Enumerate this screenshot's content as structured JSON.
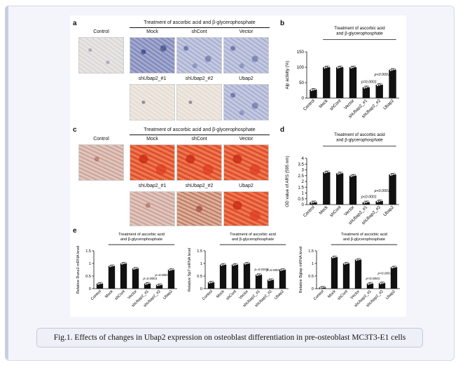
{
  "caption": "Fig.1. Effects of changes in Ubap2 expression on osteoblast differentiation in pre-osteoblast MC3T3-E1 cells",
  "panels": {
    "a": {
      "letter": "a",
      "header": "Treatment of ascorbic acid and β-glycerophosphate",
      "control_label": "Control",
      "labels": [
        "Mock",
        "shCont",
        "Vector",
        "shUbap2_#1",
        "shUbap2_#2",
        "Ubap2"
      ]
    },
    "b": {
      "letter": "b"
    },
    "c": {
      "letter": "c",
      "header": "Treatment of ascorbic acid and β-glycerophosphate",
      "control_label": "Control",
      "labels": [
        "Mock",
        "shCont",
        "Vector",
        "shUbap2_#1",
        "shUbap2_#2",
        "Ubap2"
      ]
    },
    "d": {
      "letter": "d"
    },
    "e": {
      "letter": "e"
    }
  },
  "chart_data": [
    {
      "id": "b",
      "type": "bar",
      "ylabel": "Alp activity (%)",
      "treatment": [
        "Treatment of ascorbic acid",
        "and β-glycerophosphate"
      ],
      "categories": [
        "Control",
        "Mock",
        "shCont",
        "Vector",
        "shUbap2_#1",
        "shUbap2_#2",
        "Ubap2"
      ],
      "values": [
        27,
        100,
        100,
        100,
        35,
        43,
        92
      ],
      "ylim": [
        0,
        150
      ],
      "yticks": [
        0,
        50,
        100,
        150
      ],
      "pvalues": [
        {
          "index": 4,
          "text": "p=0.0001"
        },
        {
          "index": 5,
          "text": "p<0.0001"
        }
      ]
    },
    {
      "id": "d",
      "type": "bar",
      "ylabel": "OD value of ARS (595 nm)",
      "treatment": [
        "Treatment of ascorbic acid",
        "and β-glycerophosphate"
      ],
      "categories": [
        "Control",
        "Mock",
        "shCont",
        "Vector",
        "shUbap2_#1",
        "shUbap2_#2",
        "Ubap2"
      ],
      "values": [
        0.2,
        2.8,
        2.7,
        2.5,
        0.2,
        0.3,
        2.6
      ],
      "ylim": [
        0,
        4
      ],
      "yticks": [
        0,
        0.5,
        1.0,
        1.5,
        2.0,
        2.5,
        3.0,
        3.5,
        4.0
      ],
      "pvalues": [
        {
          "index": 4,
          "text": "p<0.0001"
        },
        {
          "index": 5,
          "text": "p<0.0001"
        }
      ]
    },
    {
      "id": "e1",
      "type": "bar",
      "ylabel": "Relative Runx2 mRNA level",
      "treatment": [
        "Treatment of ascorbic acid",
        "and β-glycerophosphate"
      ],
      "categories": [
        "Control",
        "Mock",
        "shCont",
        "Vector",
        "shUbap2_#1",
        "shUbap2_#2",
        "Ubap2"
      ],
      "values": [
        0.2,
        0.9,
        1.0,
        0.8,
        0.2,
        0.15,
        0.75
      ],
      "ylim": [
        0,
        1.5
      ],
      "yticks": [
        0,
        0.5,
        1.0,
        1.5
      ],
      "pvalues": [
        {
          "index": 4,
          "text": "p=0.0001"
        },
        {
          "index": 5,
          "text": "p=0.0001"
        }
      ]
    },
    {
      "id": "e2",
      "type": "bar",
      "ylabel": "Relative Sp7 mRNA level",
      "treatment": [
        "Treatment of ascorbic acid",
        "and β-glycerophosphate"
      ],
      "categories": [
        "Control",
        "Mock",
        "shCont",
        "Vector",
        "shUbap2_#1",
        "shUbap2_#2",
        "Ubap2"
      ],
      "values": [
        0.25,
        0.95,
        0.95,
        1.0,
        0.55,
        0.35,
        0.75
      ],
      "ylim": [
        0,
        1.5
      ],
      "yticks": [
        0,
        0.5,
        1.0,
        1.5
      ],
      "pvalues": [
        {
          "index": 4,
          "text": "p=0.0109"
        },
        {
          "index": 5,
          "text": "p=0.0007"
        }
      ]
    },
    {
      "id": "e3",
      "type": "bar",
      "ylabel": "Relative Bglap mRNA level",
      "treatment": [
        "Treatment of ascorbic acid",
        "and β-glycerophosphate"
      ],
      "categories": [
        "Control",
        "Mock",
        "shCont",
        "Vector",
        "shUbap2_#1",
        "shUbap2_#2",
        "Ubap2"
      ],
      "values": [
        0.05,
        1.25,
        1.0,
        1.15,
        0.2,
        0.22,
        0.85
      ],
      "ylim": [
        0,
        1.5
      ],
      "yticks": [
        0,
        0.5,
        1.0,
        1.5
      ],
      "pvalues": [
        {
          "index": 4,
          "text": "p<0.0001"
        },
        {
          "index": 5,
          "text": "p<0.0001"
        }
      ]
    }
  ]
}
